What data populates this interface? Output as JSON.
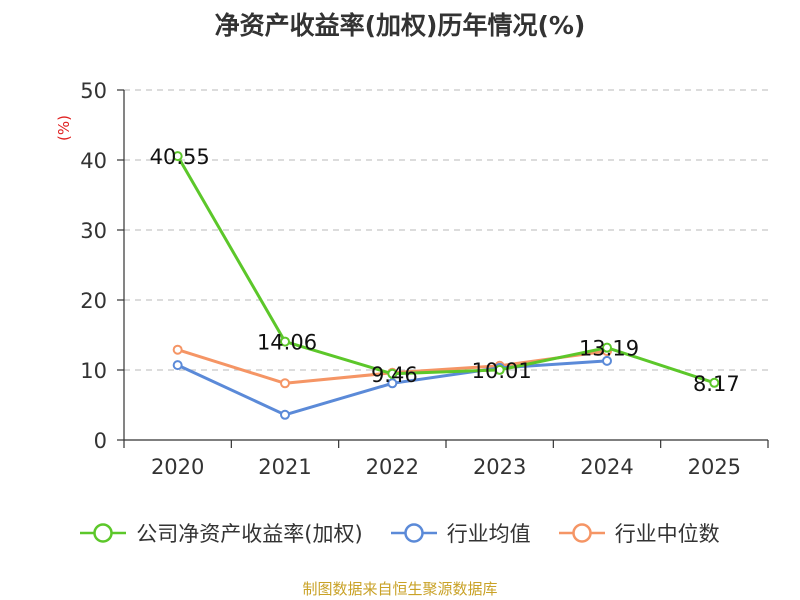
{
  "chart_data": {
    "type": "line",
    "title": "净资产收益率(加权)历年情况(%)",
    "ylabel": "(%)",
    "xlabel": "",
    "categories": [
      "2020",
      "2021",
      "2022",
      "2023",
      "2024",
      "2025"
    ],
    "ylim": [
      0,
      50
    ],
    "yticks": [
      0,
      10,
      20,
      30,
      40,
      50
    ],
    "grid": true,
    "legend_position": "bottom",
    "series": [
      {
        "name": "公司净资产收益率(加权)",
        "color": "#5cc72a",
        "values": [
          40.55,
          14.06,
          9.46,
          10.01,
          13.19,
          8.17
        ],
        "labels": [
          "40.55",
          "14.06",
          "9.46",
          "10.01",
          "13.19",
          "8.17"
        ]
      },
      {
        "name": "行业均值",
        "color": "#5b8ad8",
        "values": [
          10.7,
          3.6,
          8.1,
          10.3,
          11.3,
          null
        ]
      },
      {
        "name": "行业中位数",
        "color": "#f59565",
        "values": [
          12.9,
          8.1,
          9.6,
          10.6,
          12.7,
          null
        ]
      }
    ]
  },
  "source_text": "制图数据来自恒生聚源数据库"
}
